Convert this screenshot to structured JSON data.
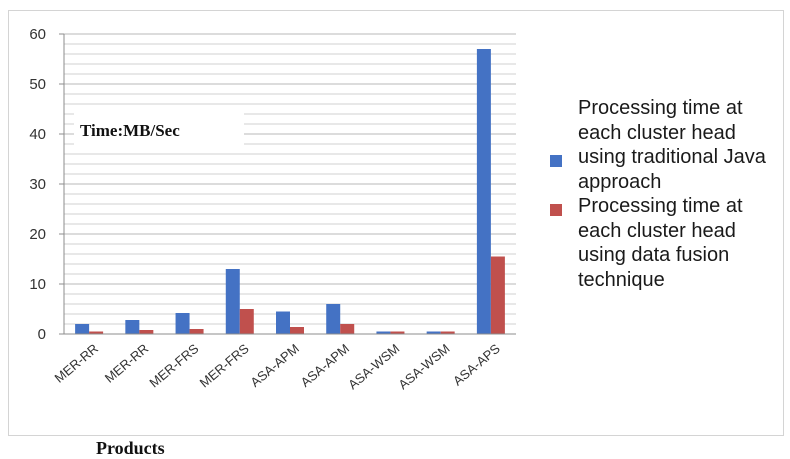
{
  "chart_data": {
    "type": "bar",
    "categories": [
      "MER-RR",
      "MER-RR",
      "MER-FRS",
      "MER-FRS",
      "ASA-APM",
      "ASA-APM",
      "ASA-WSM",
      "ASA-WSM",
      "ASA-APS"
    ],
    "series": [
      {
        "name": "Processing time at each cluster head using traditional Java approach",
        "color": "#4472c4",
        "values": [
          2,
          2.8,
          4.2,
          13,
          4.5,
          6,
          0.5,
          0.5,
          57
        ]
      },
      {
        "name": "Processing time at each cluster head using data fusion technique",
        "color": "#c0504d",
        "values": [
          0.5,
          0.8,
          1,
          5,
          1.4,
          2,
          0.5,
          0.5,
          15.5
        ]
      }
    ],
    "title": "",
    "xlabel": "Products",
    "ylabel": "",
    "ylim": [
      0,
      60
    ],
    "yticks": [
      0,
      10,
      20,
      30,
      40,
      50,
      60
    ],
    "grid": true,
    "legend_position": "right",
    "annotation": "Time:MB/Sec"
  }
}
